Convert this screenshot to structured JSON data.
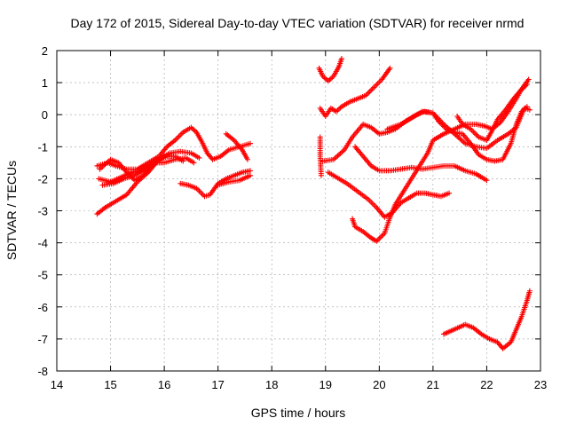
{
  "chart_data": {
    "type": "scatter",
    "title": "Day 172 of 2015, Sidereal Day-to-day VTEC variation (SDTVAR) for receiver nrmd",
    "xlabel": "GPS time / hours",
    "ylabel": "SDTVAR / TECUs",
    "xlim": [
      14,
      23
    ],
    "ylim": [
      -8,
      2
    ],
    "xticks": [
      "14",
      "15",
      "16",
      "17",
      "18",
      "19",
      "20",
      "21",
      "22",
      "23"
    ],
    "yticks": [
      "2",
      "1",
      "0",
      "-1",
      "-2",
      "-3",
      "-4",
      "-5",
      "-6",
      "-7",
      "-8"
    ],
    "grid": true,
    "marker": "+",
    "color": "#ff0000",
    "series": [
      {
        "name": "s1",
        "points": [
          [
            14.75,
            -3.1
          ],
          [
            14.9,
            -2.9
          ],
          [
            15.1,
            -2.7
          ],
          [
            15.3,
            -2.5
          ],
          [
            15.5,
            -2.1
          ],
          [
            15.7,
            -1.8
          ],
          [
            15.9,
            -1.4
          ],
          [
            16.1,
            -1.2
          ],
          [
            16.3,
            -1.15
          ],
          [
            16.5,
            -1.2
          ],
          [
            16.65,
            -1.35
          ]
        ]
      },
      {
        "name": "s2",
        "points": [
          [
            14.75,
            -1.6
          ],
          [
            14.95,
            -1.5
          ],
          [
            15.1,
            -1.6
          ],
          [
            15.3,
            -1.7
          ],
          [
            15.5,
            -1.7
          ],
          [
            15.7,
            -1.5
          ],
          [
            15.9,
            -1.3
          ],
          [
            16.05,
            -1.0
          ],
          [
            16.2,
            -0.8
          ],
          [
            16.35,
            -0.55
          ],
          [
            16.5,
            -0.4
          ],
          [
            16.6,
            -0.55
          ],
          [
            16.7,
            -0.85
          ],
          [
            16.8,
            -1.2
          ],
          [
            16.9,
            -1.4
          ],
          [
            17.05,
            -1.3
          ],
          [
            17.2,
            -1.1
          ],
          [
            17.4,
            -1.0
          ],
          [
            17.6,
            -0.9
          ]
        ]
      },
      {
        "name": "s3",
        "points": [
          [
            14.78,
            -2.0
          ],
          [
            15.0,
            -2.1
          ],
          [
            15.2,
            -1.95
          ],
          [
            15.4,
            -1.8
          ],
          [
            15.55,
            -1.75
          ],
          [
            15.7,
            -1.6
          ],
          [
            15.85,
            -1.5
          ],
          [
            16.0,
            -1.5
          ],
          [
            16.2,
            -1.4
          ],
          [
            16.4,
            -1.35
          ],
          [
            16.55,
            -1.5
          ]
        ]
      },
      {
        "name": "s4",
        "points": [
          [
            14.85,
            -2.2
          ],
          [
            15.05,
            -2.15
          ],
          [
            15.25,
            -2.0
          ],
          [
            15.45,
            -1.9
          ],
          [
            15.6,
            -1.75
          ],
          [
            15.8,
            -1.5
          ],
          [
            16.0,
            -1.3
          ]
        ]
      },
      {
        "name": "s5",
        "points": [
          [
            14.8,
            -1.7
          ],
          [
            15.0,
            -1.4
          ],
          [
            15.15,
            -1.5
          ],
          [
            15.3,
            -1.8
          ],
          [
            15.45,
            -2.05
          ],
          [
            15.6,
            -1.9
          ],
          [
            15.75,
            -1.65
          ],
          [
            15.9,
            -1.4
          ],
          [
            16.05,
            -1.3
          ],
          [
            16.2,
            -1.3
          ],
          [
            16.35,
            -1.45
          ]
        ]
      },
      {
        "name": "s6",
        "points": [
          [
            16.3,
            -2.15
          ],
          [
            16.45,
            -2.2
          ],
          [
            16.6,
            -2.3
          ],
          [
            16.75,
            -2.55
          ],
          [
            16.85,
            -2.5
          ],
          [
            17.0,
            -2.15
          ],
          [
            17.15,
            -2.0
          ],
          [
            17.3,
            -1.9
          ],
          [
            17.45,
            -1.8
          ],
          [
            17.6,
            -1.75
          ]
        ]
      },
      {
        "name": "s7",
        "points": [
          [
            17.0,
            -2.2
          ],
          [
            17.2,
            -2.1
          ],
          [
            17.4,
            -2.05
          ],
          [
            17.6,
            -1.9
          ]
        ]
      },
      {
        "name": "s8",
        "points": [
          [
            17.15,
            -0.6
          ],
          [
            17.3,
            -0.8
          ],
          [
            17.45,
            -1.1
          ],
          [
            17.55,
            -1.4
          ]
        ]
      },
      {
        "name": "s9",
        "points": [
          [
            18.88,
            1.45
          ],
          [
            18.95,
            1.2
          ],
          [
            19.05,
            1.05
          ],
          [
            19.15,
            1.2
          ],
          [
            19.25,
            1.5
          ],
          [
            19.3,
            1.75
          ]
        ]
      },
      {
        "name": "s10",
        "points": [
          [
            18.9,
            0.2
          ],
          [
            19.0,
            -0.05
          ],
          [
            19.1,
            0.2
          ],
          [
            19.2,
            0.1
          ],
          [
            19.3,
            0.25
          ],
          [
            19.45,
            0.4
          ],
          [
            19.6,
            0.5
          ],
          [
            19.75,
            0.6
          ],
          [
            19.9,
            0.85
          ],
          [
            20.05,
            1.1
          ],
          [
            20.2,
            1.45
          ]
        ]
      },
      {
        "name": "s11",
        "points": [
          [
            18.9,
            -0.7
          ],
          [
            18.9,
            -1.3
          ],
          [
            18.92,
            -1.9
          ]
        ]
      },
      {
        "name": "s12",
        "points": [
          [
            18.95,
            -1.45
          ],
          [
            19.15,
            -1.4
          ],
          [
            19.35,
            -1.1
          ],
          [
            19.5,
            -0.7
          ],
          [
            19.7,
            -0.3
          ],
          [
            19.85,
            -0.4
          ],
          [
            20.0,
            -0.6
          ],
          [
            20.15,
            -0.55
          ],
          [
            20.3,
            -0.45
          ],
          [
            20.5,
            -0.2
          ],
          [
            20.7,
            0.0
          ],
          [
            20.85,
            0.1
          ],
          [
            21.0,
            0.05
          ],
          [
            21.1,
            -0.2
          ],
          [
            21.25,
            -0.45
          ],
          [
            21.4,
            -0.55
          ],
          [
            21.55,
            -0.6
          ],
          [
            21.7,
            -0.9
          ],
          [
            21.85,
            -1.25
          ],
          [
            22.0,
            -1.4
          ],
          [
            22.15,
            -1.45
          ],
          [
            22.3,
            -1.4
          ],
          [
            22.45,
            -0.9
          ],
          [
            22.55,
            -0.3
          ],
          [
            22.65,
            0.1
          ],
          [
            22.75,
            0.25
          ]
        ]
      },
      {
        "name": "s13",
        "points": [
          [
            19.55,
            -1.0
          ],
          [
            19.7,
            -1.3
          ],
          [
            19.85,
            -1.6
          ],
          [
            20.0,
            -1.75
          ],
          [
            20.2,
            -1.75
          ],
          [
            20.4,
            -1.7
          ],
          [
            20.6,
            -1.65
          ],
          [
            20.8,
            -1.7
          ],
          [
            21.0,
            -1.65
          ],
          [
            21.2,
            -1.6
          ],
          [
            21.4,
            -1.6
          ],
          [
            21.6,
            -1.75
          ],
          [
            21.8,
            -1.85
          ],
          [
            22.0,
            -2.05
          ]
        ]
      },
      {
        "name": "s14",
        "points": [
          [
            19.05,
            -1.8
          ],
          [
            19.2,
            -1.95
          ],
          [
            19.4,
            -2.15
          ],
          [
            19.6,
            -2.4
          ],
          [
            19.8,
            -2.65
          ],
          [
            19.95,
            -2.9
          ],
          [
            20.1,
            -3.2
          ],
          [
            20.25,
            -3.05
          ],
          [
            20.4,
            -2.75
          ],
          [
            20.55,
            -2.6
          ],
          [
            20.7,
            -2.45
          ],
          [
            20.85,
            -2.45
          ],
          [
            21.0,
            -2.5
          ],
          [
            21.15,
            -2.55
          ],
          [
            21.3,
            -2.45
          ]
        ]
      },
      {
        "name": "s15",
        "points": [
          [
            19.5,
            -3.25
          ],
          [
            19.55,
            -3.5
          ],
          [
            19.7,
            -3.65
          ],
          [
            19.85,
            -3.85
          ],
          [
            19.95,
            -3.95
          ],
          [
            20.1,
            -3.7
          ],
          [
            20.2,
            -3.2
          ],
          [
            20.3,
            -2.8
          ],
          [
            20.45,
            -2.4
          ],
          [
            20.6,
            -2.0
          ],
          [
            20.75,
            -1.6
          ],
          [
            20.9,
            -1.2
          ],
          [
            21.0,
            -0.8
          ],
          [
            21.2,
            -0.6
          ],
          [
            21.4,
            -0.45
          ],
          [
            21.6,
            -0.3
          ],
          [
            21.8,
            -0.3
          ],
          [
            21.95,
            -0.35
          ],
          [
            22.1,
            -0.45
          ],
          [
            22.25,
            -0.25
          ],
          [
            22.4,
            0.1
          ],
          [
            22.55,
            0.5
          ],
          [
            22.65,
            0.8
          ],
          [
            22.78,
            1.1
          ]
        ]
      },
      {
        "name": "s16",
        "points": [
          [
            20.15,
            -0.45
          ],
          [
            20.4,
            -0.3
          ],
          [
            20.6,
            -0.1
          ],
          [
            20.8,
            0.1
          ],
          [
            21.0,
            0.05
          ],
          [
            21.2,
            -0.3
          ],
          [
            21.4,
            -0.6
          ],
          [
            21.6,
            -0.9
          ],
          [
            21.8,
            -1.0
          ],
          [
            22.0,
            -1.05
          ],
          [
            22.2,
            -0.8
          ],
          [
            22.4,
            -0.6
          ],
          [
            22.55,
            -0.4
          ],
          [
            22.7,
            0.2
          ],
          [
            22.8,
            0.15
          ]
        ]
      },
      {
        "name": "s17",
        "points": [
          [
            21.45,
            -0.05
          ],
          [
            21.55,
            -0.3
          ],
          [
            21.7,
            -0.45
          ],
          [
            21.85,
            -0.7
          ],
          [
            22.0,
            -0.8
          ],
          [
            22.1,
            -0.5
          ],
          [
            22.2,
            -0.15
          ],
          [
            22.35,
            0.15
          ],
          [
            22.5,
            0.5
          ],
          [
            22.6,
            0.7
          ],
          [
            22.75,
            0.95
          ]
        ]
      },
      {
        "name": "s18",
        "points": [
          [
            21.2,
            -6.85
          ],
          [
            21.4,
            -6.7
          ],
          [
            21.6,
            -6.55
          ],
          [
            21.75,
            -6.65
          ],
          [
            21.9,
            -6.85
          ],
          [
            22.05,
            -7.0
          ],
          [
            22.2,
            -7.1
          ],
          [
            22.3,
            -7.3
          ],
          [
            22.45,
            -7.1
          ],
          [
            22.55,
            -6.7
          ],
          [
            22.65,
            -6.3
          ],
          [
            22.75,
            -5.8
          ],
          [
            22.8,
            -5.5
          ]
        ]
      }
    ]
  }
}
